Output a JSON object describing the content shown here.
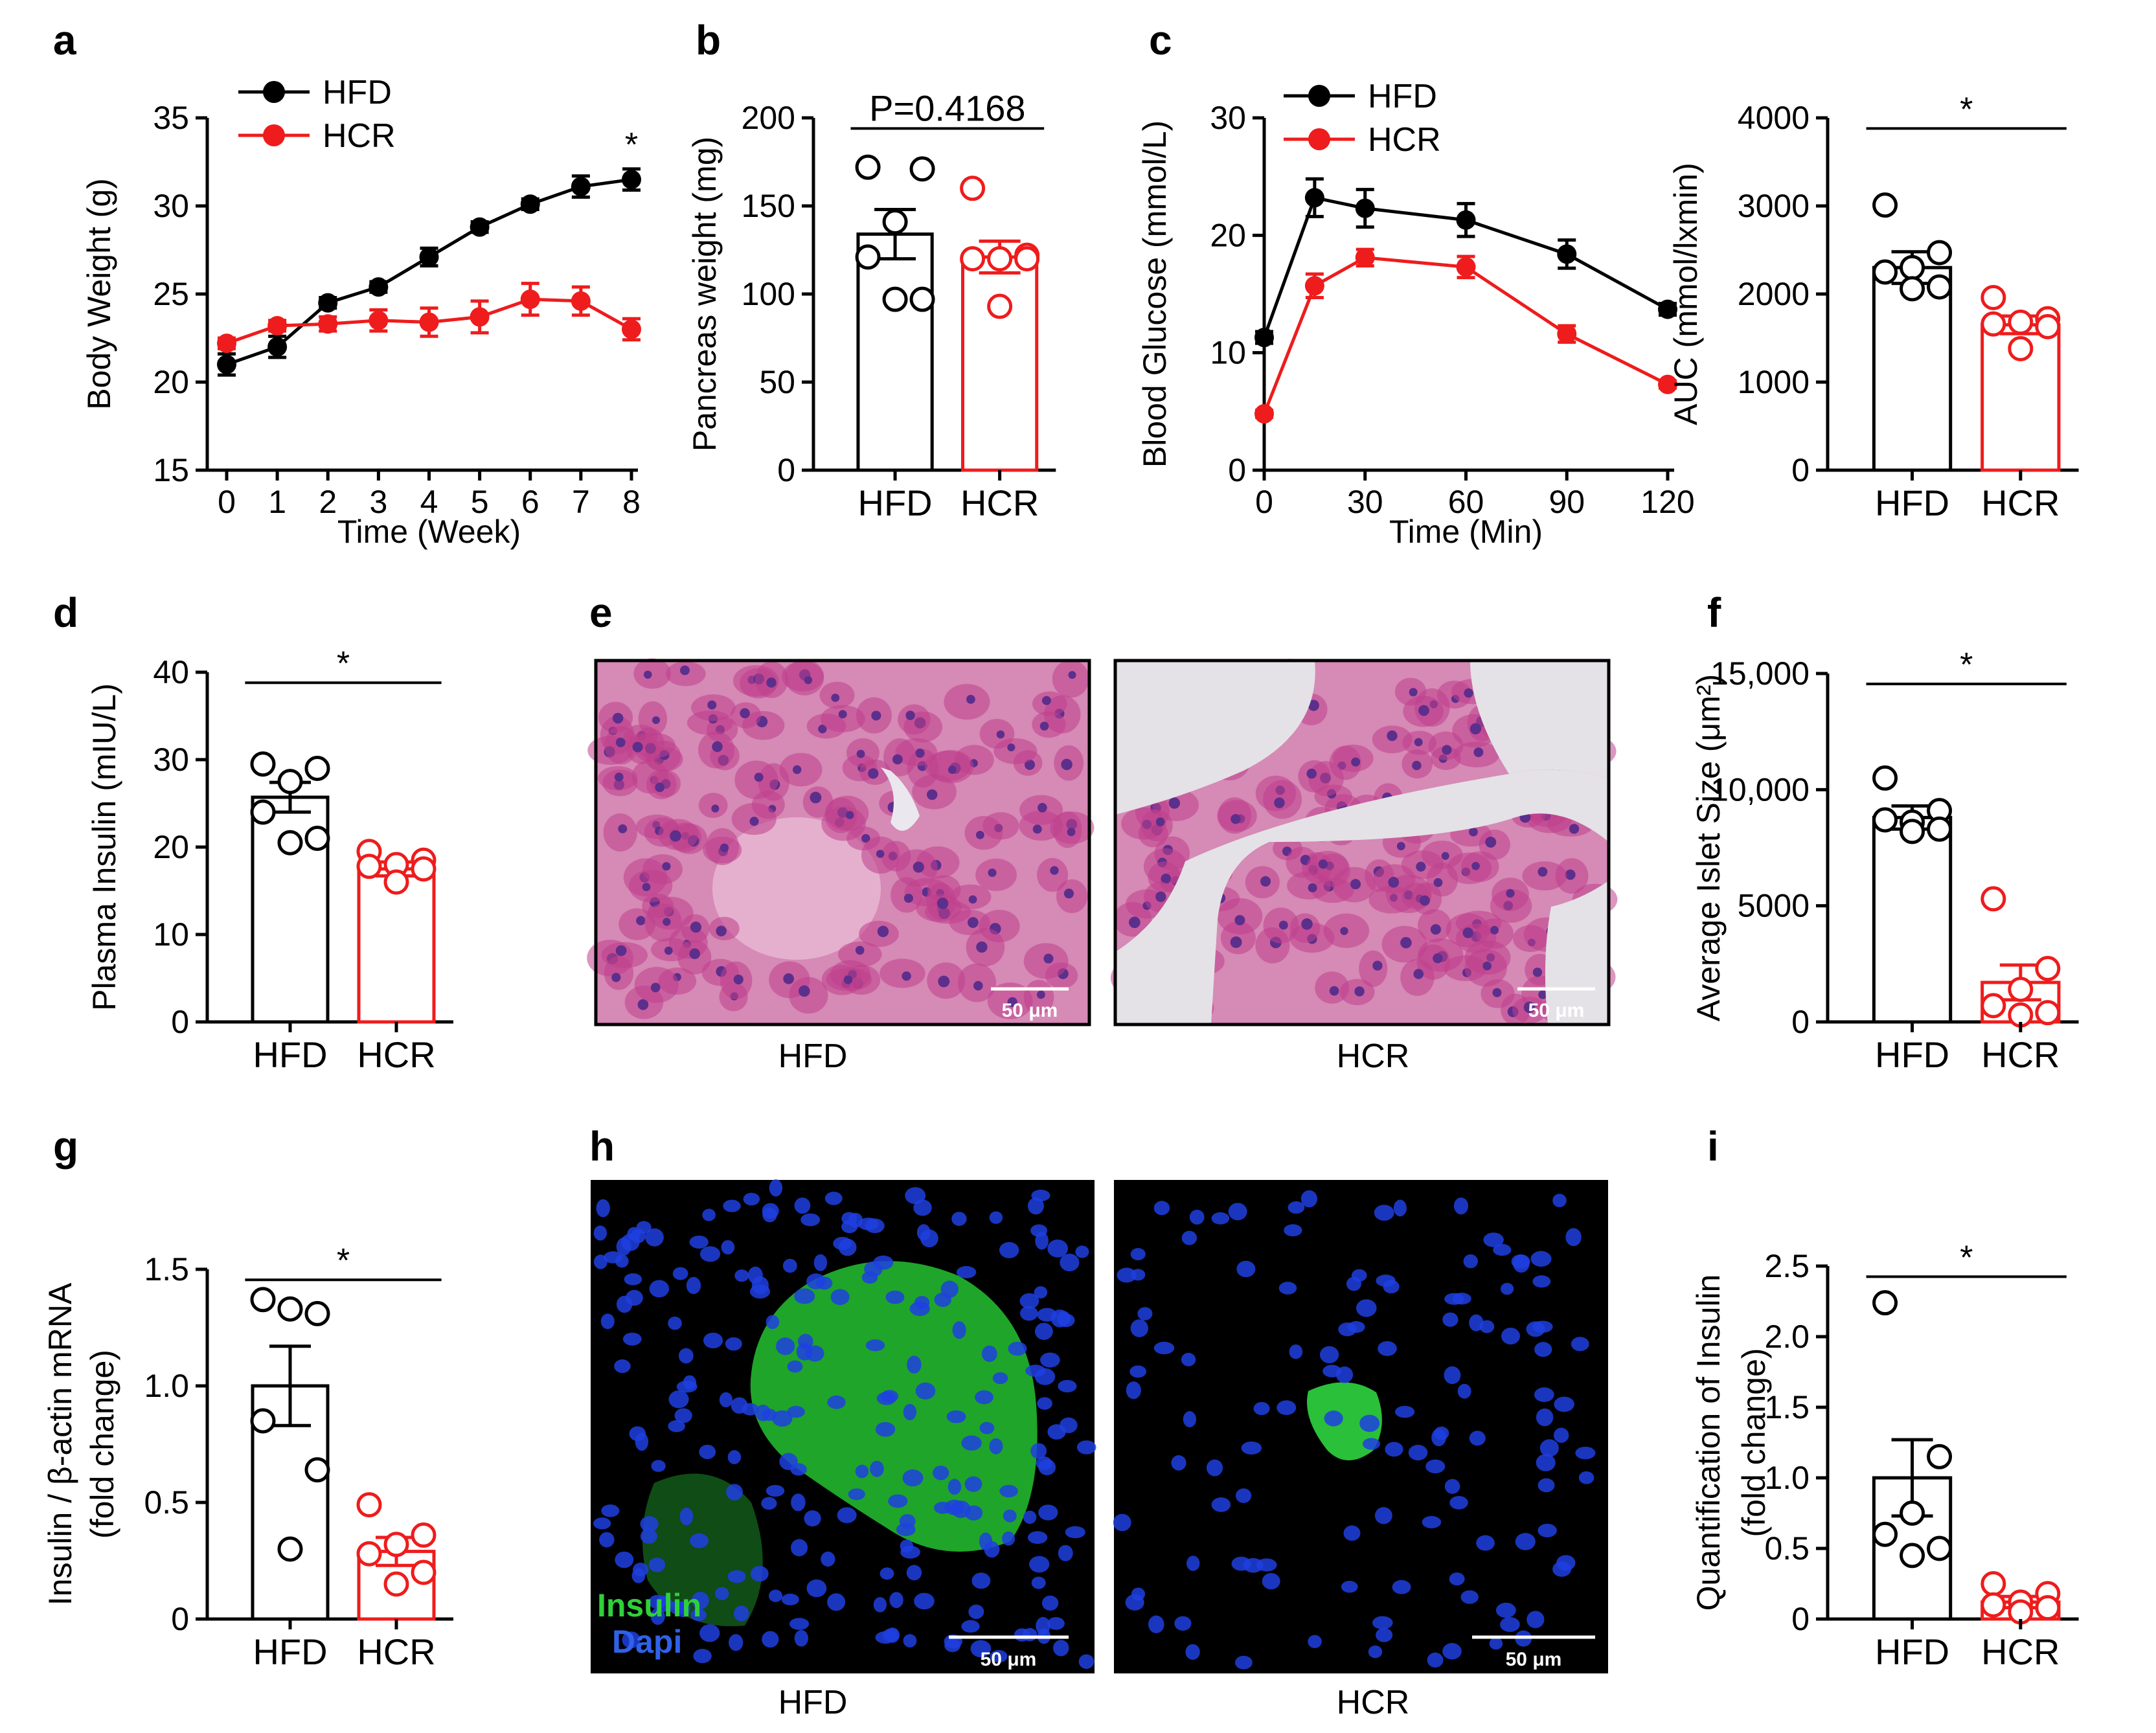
{
  "colors": {
    "hfd": "#000000",
    "hcr": "#ee1c1c",
    "he_bg": "#d68ab6",
    "he_cell": "#bf3f8c",
    "he_nucleus": "#5c2f8c",
    "he_lumen": "#e8e6ea",
    "fl_bg": "#000000",
    "fl_insulin": "#2ed13a",
    "fl_dapi": "#1f3fe0"
  },
  "panels": {
    "a": {
      "label": "a"
    },
    "b": {
      "label": "b"
    },
    "c": {
      "label": "c"
    },
    "d": {
      "label": "d"
    },
    "e": {
      "label": "e"
    },
    "f": {
      "label": "f"
    },
    "g": {
      "label": "g"
    },
    "h": {
      "label": "h"
    },
    "i": {
      "label": "i"
    }
  },
  "micrographs": {
    "e": {
      "left_caption": "HFD",
      "right_caption": "HCR",
      "scalebar": "50 μm"
    },
    "h": {
      "left_caption": "HFD",
      "right_caption": "HCR",
      "scalebar": "50 μm",
      "stain_insulin": "Insulin",
      "stain_dapi": "Dapi"
    }
  },
  "chart_data": [
    {
      "id": "a",
      "type": "line",
      "xlabel": "Time (Week)",
      "ylabel": "Body Weight  (g)",
      "xlim": [
        0,
        8
      ],
      "ylim": [
        15,
        35
      ],
      "xticks": [
        0,
        1,
        2,
        3,
        4,
        5,
        6,
        7,
        8
      ],
      "xticklabels": [
        "0",
        "1",
        "2",
        "3",
        "4",
        "5",
        "6",
        "7",
        "8"
      ],
      "yticks": [
        15,
        20,
        25,
        30,
        35
      ],
      "yticklabels": [
        "15",
        "20",
        "25",
        "30",
        "35"
      ],
      "legend_position": "top-left",
      "series": [
        {
          "name": "HFD",
          "color": "#000000",
          "x": [
            0,
            1,
            2,
            3,
            4,
            5,
            6,
            7,
            8
          ],
          "y": [
            21.0,
            22.0,
            24.5,
            25.4,
            27.1,
            28.8,
            30.1,
            31.1,
            31.5
          ],
          "err": [
            0.6,
            0.6,
            0.3,
            0.3,
            0.5,
            0.3,
            0.3,
            0.6,
            0.6
          ]
        },
        {
          "name": "HCR",
          "color": "#ee1c1c",
          "x": [
            0,
            1,
            2,
            3,
            4,
            5,
            6,
            7,
            8
          ],
          "y": [
            22.2,
            23.2,
            23.3,
            23.5,
            23.4,
            23.7,
            24.7,
            24.6,
            23.0
          ],
          "err": [
            0.3,
            0.3,
            0.4,
            0.6,
            0.8,
            0.9,
            0.9,
            0.8,
            0.6
          ]
        }
      ],
      "annotations": [
        {
          "text": "*",
          "x": 8,
          "y": 33.2
        }
      ]
    },
    {
      "id": "b",
      "type": "bar",
      "xlabel": "",
      "ylabel": "Pancreas weight (mg)",
      "ylim": [
        0,
        200
      ],
      "yticks": [
        0,
        50,
        100,
        150,
        200
      ],
      "yticklabels": [
        "0",
        "50",
        "100",
        "150",
        "200"
      ],
      "categories": [
        "HFD",
        "HCR"
      ],
      "values": [
        134,
        121
      ],
      "err": [
        14,
        9
      ],
      "colors": [
        "#000000",
        "#ee1c1c"
      ],
      "points": [
        [
          172,
          171,
          141,
          121,
          97,
          97
        ],
        [
          160,
          122,
          120,
          120,
          120,
          93
        ]
      ],
      "significance": "P=0.4168"
    },
    {
      "id": "c1",
      "type": "line",
      "xlabel": "Time (Min)",
      "ylabel": "Blood Glucose (mmol/L)",
      "xlim": [
        0,
        120
      ],
      "ylim": [
        0,
        30
      ],
      "xticks": [
        0,
        30,
        60,
        90,
        120
      ],
      "xticklabels": [
        "0",
        "30",
        "60",
        "90",
        "120"
      ],
      "yticks": [
        0,
        10,
        20,
        30
      ],
      "yticklabels": [
        "0",
        "10",
        "20",
        "30"
      ],
      "legend_position": "top-left",
      "series": [
        {
          "name": "HFD",
          "color": "#000000",
          "x": [
            0,
            15,
            30,
            60,
            90,
            120
          ],
          "y": [
            11.3,
            23.2,
            22.3,
            21.3,
            18.4,
            13.7
          ],
          "err": [
            0.5,
            1.6,
            1.6,
            1.4,
            1.2,
            0.5
          ]
        },
        {
          "name": "HCR",
          "color": "#ee1c1c",
          "x": [
            0,
            15,
            30,
            60,
            90,
            120
          ],
          "y": [
            4.8,
            15.7,
            18.1,
            17.3,
            11.6,
            7.3
          ],
          "err": [
            0.3,
            1.0,
            0.7,
            0.9,
            0.7,
            0.3
          ]
        }
      ]
    },
    {
      "id": "c2",
      "type": "bar",
      "xlabel": "",
      "ylabel": "AUC (mmol/lxmin)",
      "ylim": [
        0,
        4000
      ],
      "yticks": [
        0,
        1000,
        2000,
        3000,
        4000
      ],
      "yticklabels": [
        "0",
        "1000",
        "2000",
        "3000",
        "4000"
      ],
      "categories": [
        "HFD",
        "HCR"
      ],
      "values": [
        2300,
        1650
      ],
      "err": [
        180,
        100
      ],
      "colors": [
        "#000000",
        "#ee1c1c"
      ],
      "points": [
        [
          3010,
          2470,
          2300,
          2250,
          2080,
          2060
        ],
        [
          1960,
          1720,
          1680,
          1660,
          1630,
          1380
        ]
      ],
      "significance": "*"
    },
    {
      "id": "d",
      "type": "bar",
      "xlabel": "",
      "ylabel": "Plasma Insulin (mIU/L)",
      "ylim": [
        0,
        40
      ],
      "yticks": [
        0,
        10,
        20,
        30,
        40
      ],
      "yticklabels": [
        "0",
        "10",
        "20",
        "30",
        "40"
      ],
      "categories": [
        "HFD",
        "HCR"
      ],
      "values": [
        25.7,
        17.5
      ],
      "err": [
        1.7,
        0.8
      ],
      "colors": [
        "#000000",
        "#ee1c1c"
      ],
      "points": [
        [
          29.5,
          29.0,
          27.5,
          24.0,
          21.0,
          20.5
        ],
        [
          19.5,
          18.5,
          18.0,
          17.8,
          17.5,
          16.0
        ]
      ],
      "significance": "*"
    },
    {
      "id": "f",
      "type": "bar",
      "xlabel": "",
      "ylabel": "Average Islet Size (μm²)",
      "ylim": [
        0,
        15000
      ],
      "yticks": [
        0,
        5000,
        10000,
        15000
      ],
      "yticklabels": [
        "0",
        "5000",
        "10,000",
        "15,000"
      ],
      "categories": [
        "HFD",
        "HCR"
      ],
      "values": [
        8800,
        1700
      ],
      "err": [
        500,
        750
      ],
      "colors": [
        "#000000",
        "#ee1c1c"
      ],
      "points": [
        [
          10500,
          9100,
          8600,
          8700,
          8300,
          8200
        ],
        [
          5300,
          2300,
          1400,
          700,
          400,
          300
        ]
      ],
      "significance": "*"
    },
    {
      "id": "g",
      "type": "bar",
      "xlabel": "",
      "ylabel": "Insulin / β-actin mRNA",
      "ylabel2": "(fold change)",
      "ylim": [
        0,
        1.5
      ],
      "yticks": [
        0,
        0.5,
        1.0,
        1.5
      ],
      "yticklabels": [
        "0",
        "0.5",
        "1.0",
        "1.5"
      ],
      "categories": [
        "HFD",
        "HCR"
      ],
      "values": [
        1.0,
        0.29
      ],
      "err": [
        0.17,
        0.06
      ],
      "colors": [
        "#000000",
        "#ee1c1c"
      ],
      "points": [
        [
          1.37,
          1.31,
          1.33,
          0.85,
          0.64,
          0.3
        ],
        [
          0.49,
          0.36,
          0.32,
          0.28,
          0.2,
          0.15
        ]
      ],
      "significance": "*"
    },
    {
      "id": "i",
      "type": "bar",
      "xlabel": "",
      "ylabel": "Quantification of Insulin",
      "ylabel2": "(fold change)",
      "ylim": [
        0,
        2.5
      ],
      "yticks": [
        0,
        0.5,
        1.0,
        1.5,
        2.0,
        2.5
      ],
      "yticklabels": [
        "0",
        "0.5",
        "1.0",
        "1.5",
        "2.0",
        "2.5"
      ],
      "categories": [
        "HFD",
        "HCR"
      ],
      "values": [
        1.0,
        0.12
      ],
      "err": [
        0.27,
        0.04
      ],
      "colors": [
        "#000000",
        "#ee1c1c"
      ],
      "points": [
        [
          2.24,
          1.15,
          0.75,
          0.6,
          0.5,
          0.45
        ],
        [
          0.25,
          0.18,
          0.12,
          0.1,
          0.08,
          0.05
        ]
      ],
      "significance": "*"
    }
  ]
}
